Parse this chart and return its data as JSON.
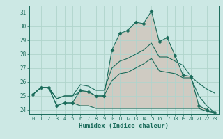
{
  "xlabel": "Humidex (Indice chaleur)",
  "xlim": [
    -0.5,
    23.5
  ],
  "ylim": [
    23.7,
    31.5
  ],
  "yticks": [
    24,
    25,
    26,
    27,
    28,
    29,
    30,
    31
  ],
  "xticks": [
    0,
    1,
    2,
    3,
    4,
    5,
    6,
    7,
    8,
    9,
    10,
    11,
    12,
    13,
    14,
    15,
    16,
    17,
    18,
    19,
    20,
    21,
    22,
    23
  ],
  "background_color": "#cce8e4",
  "grid_color": "#b0d4cc",
  "line_color": "#1a6b5a",
  "lines": {
    "top": [
      25.1,
      25.6,
      25.6,
      24.3,
      24.5,
      24.5,
      25.4,
      25.3,
      25.0,
      25.0,
      28.3,
      29.5,
      29.7,
      30.3,
      30.2,
      31.1,
      28.9,
      29.2,
      27.9,
      26.5,
      26.4,
      24.3,
      24.0,
      23.8
    ],
    "upper_mid": [
      25.1,
      25.6,
      25.6,
      24.8,
      25.0,
      25.0,
      25.8,
      25.7,
      25.4,
      25.4,
      27.0,
      27.5,
      27.7,
      28.0,
      28.3,
      28.8,
      27.8,
      27.8,
      27.5,
      27.2,
      26.4,
      25.9,
      25.5,
      25.2
    ],
    "lower_mid": [
      25.1,
      25.6,
      25.6,
      24.8,
      25.0,
      25.0,
      25.3,
      25.3,
      25.0,
      25.0,
      26.1,
      26.6,
      26.7,
      27.0,
      27.3,
      27.7,
      26.8,
      26.7,
      26.6,
      26.3,
      26.3,
      25.0,
      24.3,
      23.8
    ],
    "bottom": [
      25.1,
      25.6,
      25.6,
      24.3,
      24.5,
      24.5,
      24.3,
      24.3,
      24.1,
      24.1,
      24.1,
      24.1,
      24.1,
      24.1,
      24.1,
      24.1,
      24.1,
      24.1,
      24.1,
      24.1,
      24.1,
      24.1,
      23.9,
      23.8
    ]
  },
  "marker": "D",
  "markersize": 2.5,
  "linewidth": 0.8,
  "xlabel_fontsize": 6.5,
  "tick_fontsize": 5.5
}
